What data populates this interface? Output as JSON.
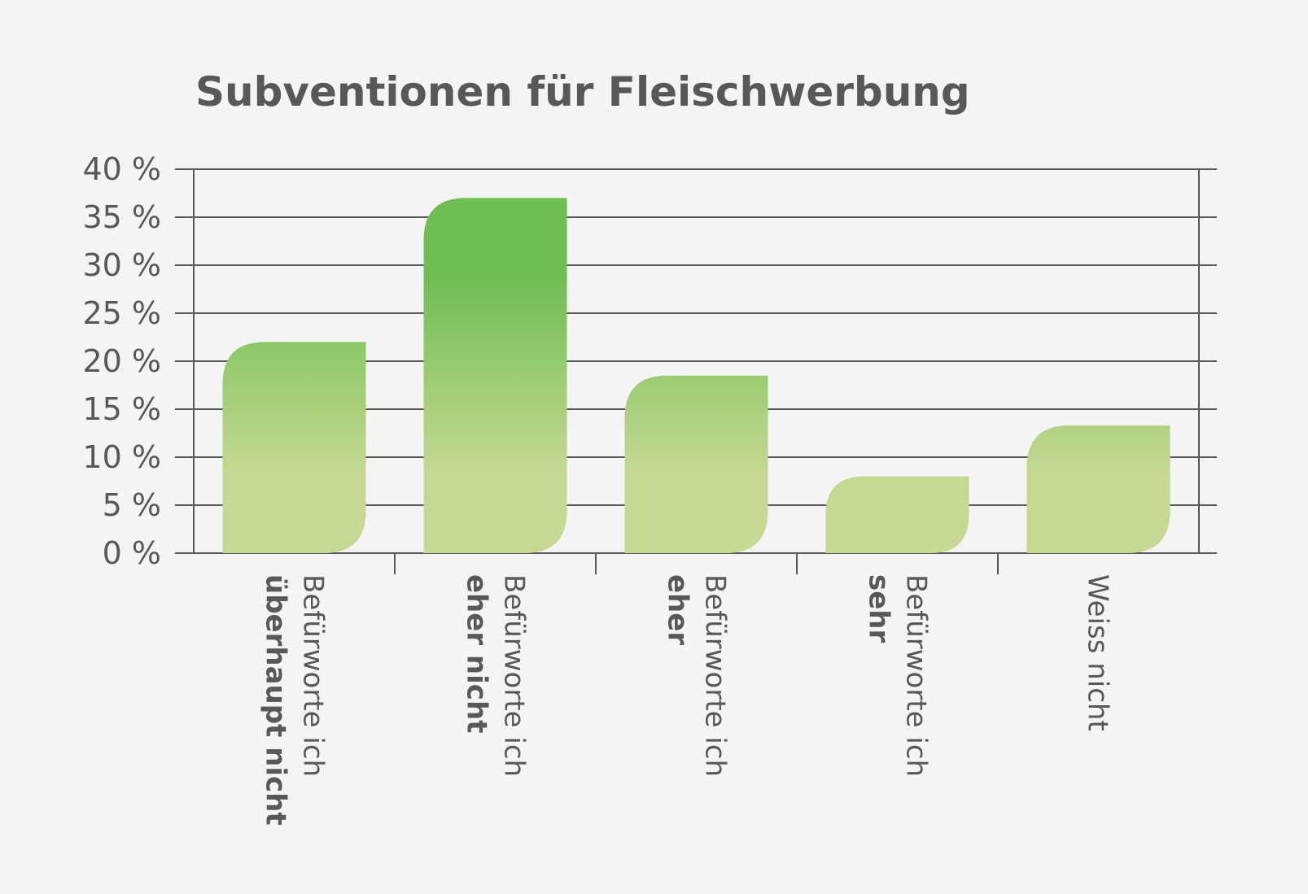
{
  "chart_data": {
    "type": "bar",
    "title": "Subventionen für Fleischwerbung",
    "categories": [
      {
        "line1": "Befürworte ich",
        "line2": "überhaupt nicht"
      },
      {
        "line1": "Befürworte ich",
        "line2": "eher nicht"
      },
      {
        "line1": "Befürworte ich",
        "line2": "eher"
      },
      {
        "line1": "Befürworte ich",
        "line2": "sehr"
      },
      {
        "line1": "Weiss nicht",
        "line2": ""
      }
    ],
    "values": [
      22,
      37,
      18.5,
      8,
      13.3
    ],
    "ylim": [
      0,
      40
    ],
    "yticks": [
      "0 %",
      "5 %",
      "10 %",
      "15 %",
      "20 %",
      "25 %",
      "30 %",
      "35 %",
      "40 %"
    ],
    "grid": true,
    "colors": {
      "bar_top": "#6fbe52",
      "bar_bottom": "#c6d993",
      "text": "#58585a",
      "grid": "#58585a"
    }
  }
}
